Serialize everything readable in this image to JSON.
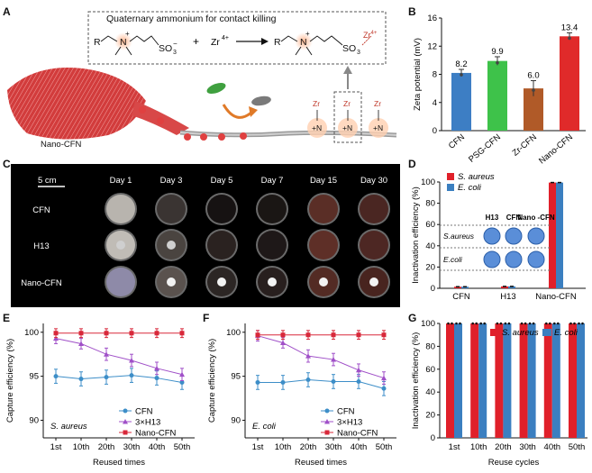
{
  "panel_labels": {
    "A": "A",
    "B": "B",
    "C": "C",
    "D": "D",
    "E": "E",
    "F": "F",
    "G": "G"
  },
  "panelA": {
    "box_title": "Quaternary ammonium for contact killing",
    "reaction": {
      "R": "R",
      "N": "N",
      "plus": "+",
      "SO3": "SO",
      "sub3": "3",
      "minus": "−",
      "reagent": "Zr",
      "reagent_charge": "4+"
    },
    "zr_labels": [
      "Zr",
      "Zr",
      "Zr"
    ],
    "n_labels": [
      "+N",
      "+N",
      "+N"
    ],
    "fiber_label": "Nano-CFN"
  },
  "panelC": {
    "scale": "5 cm",
    "days": [
      "Day 1",
      "Day 3",
      "Day 5",
      "Day 7",
      "Day 15",
      "Day 30"
    ],
    "rows": [
      "CFN",
      "H13",
      "Nano-CFN"
    ],
    "dish_colors": [
      [
        "#b8b4ae",
        "#3a3432",
        "#161212",
        "#1a1614",
        "#5a2e26",
        "#4a2622"
      ],
      [
        "#c0bcb6",
        "#4a4440",
        "#2a2220",
        "#1e1818",
        "#5e2f27",
        "#4d2723"
      ],
      [
        "#8e8aa8",
        "#5a524e",
        "#2c2624",
        "#281f1e",
        "#532b24",
        "#48241f"
      ]
    ]
  },
  "chart_data": [
    {
      "panel": "B",
      "type": "bar",
      "categories": [
        "CFN",
        "PSG-CFN",
        "Zr-CFN",
        "Nano-CFN"
      ],
      "values": [
        8.2,
        9.9,
        6.0,
        13.4
      ],
      "errors": [
        0.5,
        0.6,
        1.1,
        0.5
      ],
      "value_labels": [
        "8.2",
        "9.9",
        "6.0",
        "13.4"
      ],
      "colors": [
        "#3d7ec4",
        "#3ec24a",
        "#b05a28",
        "#e02a2a"
      ],
      "ylabel": "Zeta potential (mV)",
      "ylim": [
        0,
        16
      ],
      "yticks": [
        "0",
        "4",
        "8",
        "12",
        "16"
      ]
    },
    {
      "panel": "D",
      "type": "bar",
      "categories": [
        "CFN",
        "H13",
        "Nano-CFN"
      ],
      "series": [
        {
          "name": "S. aureus",
          "color": "#e0202a",
          "values": [
            1.5,
            1.8,
            99.5
          ]
        },
        {
          "name": "E. coli",
          "color": "#3b7fc0",
          "values": [
            1.5,
            1.8,
            99.5
          ]
        }
      ],
      "ylabel": "Inactivation efficiency (%)",
      "ylim": [
        0,
        100
      ],
      "yticks": [
        "0",
        "20",
        "40",
        "60",
        "80",
        "100"
      ],
      "inset": {
        "columns": [
          "H13",
          "CFN",
          "Nano\n-CFN"
        ],
        "rows": [
          "S.aureus",
          "E.coli"
        ]
      }
    },
    {
      "panel": "E",
      "type": "line",
      "annotation": "S. aureus",
      "categories": [
        "1st",
        "10th",
        "20th",
        "30th",
        "40th",
        "50th"
      ],
      "xlabel": "Reused times",
      "ylabel": "Capture efficiency (%)",
      "ylim": [
        88,
        101
      ],
      "yticks": [
        "90",
        "95",
        "100"
      ],
      "series": [
        {
          "name": "CFN",
          "color": "#3d8ec8",
          "marker": "circle",
          "values": [
            95.0,
            94.7,
            94.9,
            95.1,
            94.8,
            94.3
          ],
          "errors": [
            0.8,
            0.8,
            0.8,
            0.8,
            0.8,
            0.8
          ]
        },
        {
          "name": "3×H13",
          "color": "#a050c8",
          "marker": "triangle",
          "values": [
            99.3,
            98.7,
            97.5,
            96.8,
            95.9,
            95.2
          ],
          "errors": [
            0.6,
            0.6,
            0.7,
            0.7,
            0.7,
            0.7
          ]
        },
        {
          "name": "Nano-CFN",
          "color": "#d8283a",
          "marker": "square",
          "values": [
            99.9,
            99.9,
            99.9,
            99.9,
            99.9,
            99.9
          ],
          "errors": [
            0.5,
            0.5,
            0.5,
            0.5,
            0.5,
            0.5
          ]
        }
      ]
    },
    {
      "panel": "F",
      "type": "line",
      "annotation": "E. coli",
      "categories": [
        "1st",
        "10th",
        "20th",
        "30th",
        "40th",
        "50th"
      ],
      "xlabel": "Reused times",
      "ylabel": "Capture efficiency (%)",
      "ylim": [
        88,
        101
      ],
      "yticks": [
        "90",
        "95",
        "100"
      ],
      "series": [
        {
          "name": "CFN",
          "color": "#3d8ec8",
          "marker": "circle",
          "values": [
            94.3,
            94.3,
            94.6,
            94.4,
            94.4,
            93.6
          ],
          "errors": [
            0.8,
            0.8,
            0.8,
            0.8,
            0.8,
            0.8
          ]
        },
        {
          "name": "3×H13",
          "color": "#a050c8",
          "marker": "triangle",
          "values": [
            99.6,
            98.8,
            97.3,
            96.9,
            95.7,
            94.8
          ],
          "errors": [
            0.6,
            0.6,
            0.7,
            0.7,
            0.7,
            0.7
          ]
        },
        {
          "name": "Nano-CFN",
          "color": "#d8283a",
          "marker": "square",
          "values": [
            99.7,
            99.7,
            99.7,
            99.7,
            99.7,
            99.7
          ],
          "errors": [
            0.5,
            0.5,
            0.5,
            0.5,
            0.5,
            0.5
          ]
        }
      ]
    },
    {
      "panel": "G",
      "type": "bar",
      "categories": [
        "1st",
        "10th",
        "20th",
        "30th",
        "40th",
        "50th"
      ],
      "xlabel": "Reuse cycles",
      "ylabel": "Inactivation efficiency (%)",
      "ylim": [
        0,
        100
      ],
      "yticks": [
        "0",
        "20",
        "40",
        "60",
        "80",
        "100"
      ],
      "series": [
        {
          "name": "S. aureus",
          "color": "#e0202a",
          "values": [
            100,
            100,
            100,
            100,
            100,
            100
          ]
        },
        {
          "name": "E. coli",
          "color": "#3b7fc0",
          "values": [
            100,
            100,
            100,
            100,
            100,
            100
          ]
        }
      ]
    }
  ]
}
